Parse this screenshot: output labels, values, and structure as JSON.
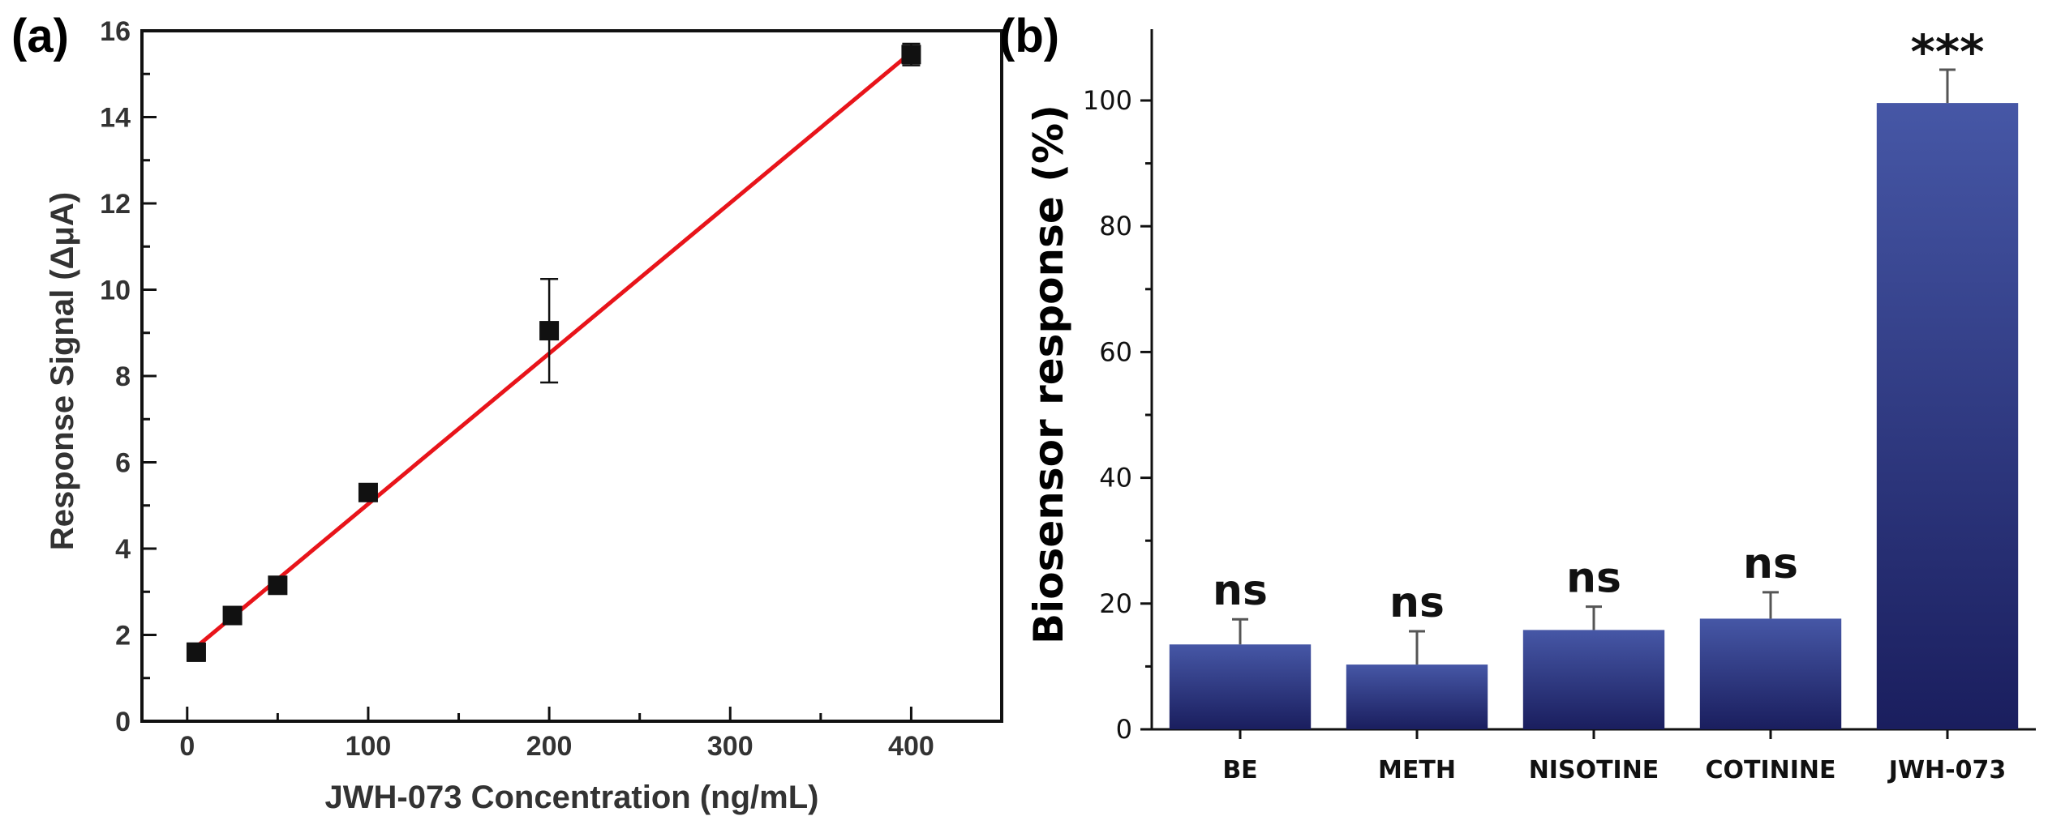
{
  "figure": {
    "panel_a_label": "(a)",
    "panel_b_label": "(b)"
  },
  "chart_data": [
    {
      "type": "scatter",
      "panel": "(a)",
      "xlabel": "JWH-073 Concentration (ng/mL)",
      "ylabel": "Response Signal (ΔμA)",
      "xlim": [
        -25,
        450
      ],
      "ylim": [
        0,
        16
      ],
      "xticks": [
        0,
        100,
        200,
        300,
        400
      ],
      "xtick_labels": [
        "0",
        "100",
        "200",
        "300",
        "400"
      ],
      "yticks": [
        0,
        2,
        4,
        6,
        8,
        10,
        12,
        14,
        16
      ],
      "ytick_labels": [
        "0",
        "2",
        "4",
        "6",
        "8",
        "10",
        "12",
        "14",
        "16"
      ],
      "grid": false,
      "points": [
        {
          "x": 5,
          "y": 1.6,
          "err": 0.2
        },
        {
          "x": 25,
          "y": 2.45,
          "err": 0.1
        },
        {
          "x": 50,
          "y": 3.15,
          "err": 0.1
        },
        {
          "x": 100,
          "y": 5.3,
          "err": 0.15
        },
        {
          "x": 200,
          "y": 9.05,
          "err": 1.2
        },
        {
          "x": 400,
          "y": 15.45,
          "err": 0.25
        }
      ],
      "fit_line": {
        "x0": 5,
        "y0": 1.72,
        "x1": 400,
        "y1": 15.5,
        "color": "#e8141a"
      },
      "marker_color": "#111111"
    },
    {
      "type": "bar",
      "panel": "(b)",
      "xlabel": "",
      "ylabel": "Biosensor response (%)",
      "ylim": [
        0,
        110
      ],
      "yticks": [
        0,
        20,
        40,
        60,
        80,
        100
      ],
      "ytick_labels": [
        "0",
        "20",
        "40",
        "60",
        "80",
        "100"
      ],
      "grid": false,
      "categories": [
        "BE",
        "METH",
        "NISOTINE",
        "COTININE",
        "JWH-073"
      ],
      "values": [
        13.5,
        10.3,
        15.8,
        17.6,
        99.6
      ],
      "errors": [
        4.0,
        5.3,
        3.7,
        4.2,
        5.3
      ],
      "annotations": [
        "ns",
        "ns",
        "ns",
        "ns",
        "***"
      ],
      "bar_color_top": "#4657a6",
      "bar_color_bottom": "#1a1e5e"
    }
  ]
}
